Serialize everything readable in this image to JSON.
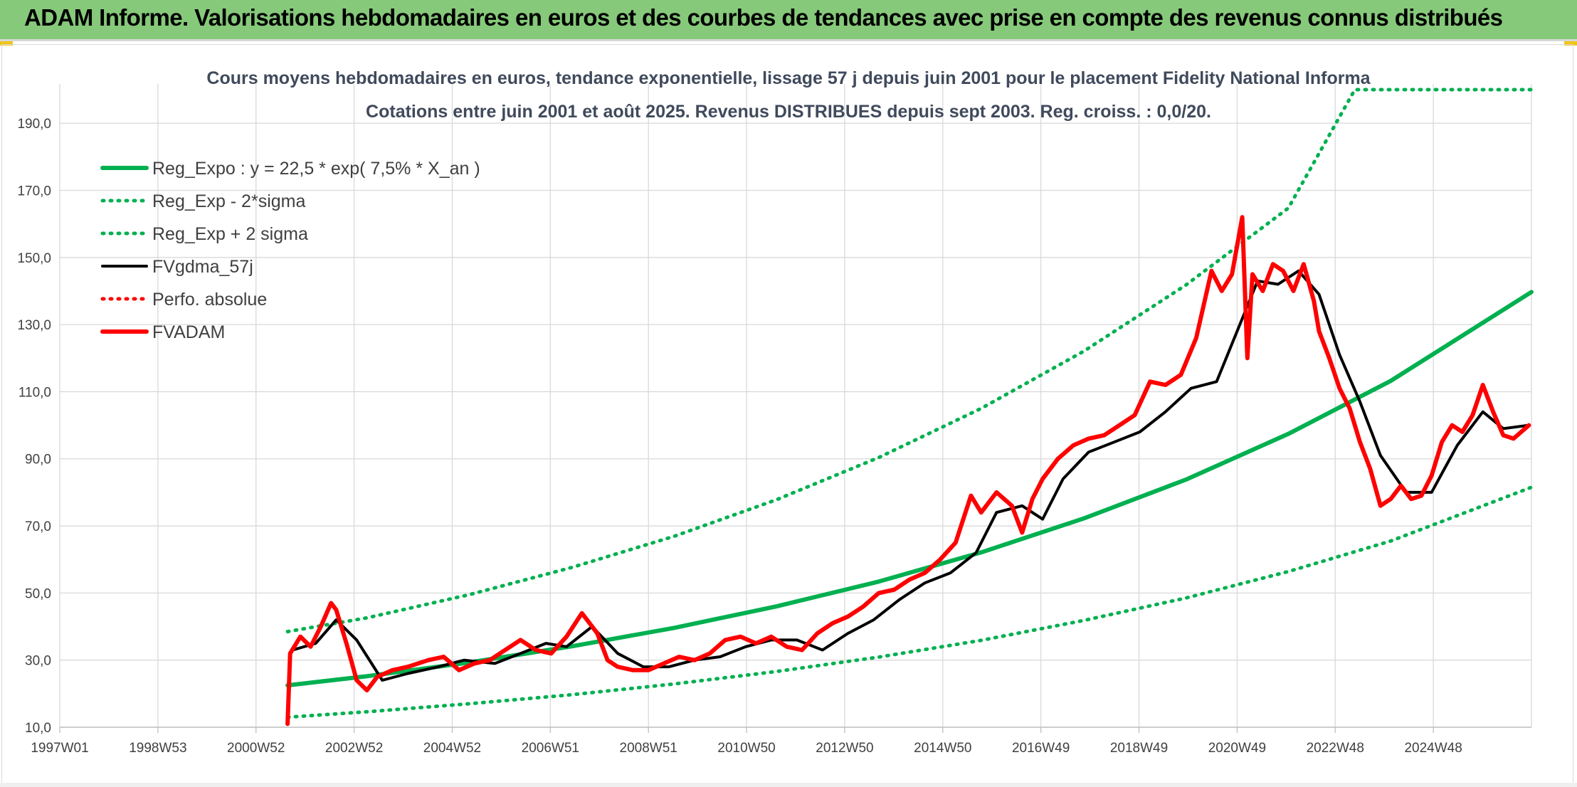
{
  "banner": {
    "title": "ADAM Informe. Valorisations hebdomadaires en euros et des courbes de tendances avec prise en compte des revenus connus distribués"
  },
  "chart_data": {
    "type": "line",
    "title": "Cours moyens hebdomadaires en euros, tendance exponentielle, lissage 57 j depuis juin 2001 pour le placement Fidelity National Informa",
    "subtitle": "Cotations entre juin 2001 et août 2025. Revenus DISTRIBUES depuis sept 2003. Reg. croiss. : 0,0/20.",
    "xlabel": "",
    "ylabel": "",
    "x_ticks": [
      "1997W01",
      "1998W53",
      "2000W52",
      "2002W52",
      "2004W52",
      "2006W51",
      "2008W51",
      "2010W50",
      "2012W50",
      "2014W50",
      "2016W49",
      "2018W49",
      "2020W49",
      "2022W48",
      "2024W48"
    ],
    "x_range": [
      1997.0,
      2025.75
    ],
    "ylim": [
      10,
      200
    ],
    "y_ticks": [
      10,
      30,
      50,
      70,
      90,
      110,
      130,
      150,
      170,
      190
    ],
    "y_tick_labels": [
      "10,0",
      "30,0",
      "50,0",
      "70,0",
      "90,0",
      "110,0",
      "130,0",
      "150,0",
      "170,0",
      "190,0"
    ],
    "grid": true,
    "legend_position": "top-left",
    "series": [
      {
        "name": "Reg_Expo : y = 22,5 * exp( 7,5% *  X_an )",
        "color": "#00b050",
        "style": "solid-thick",
        "formula": {
          "a": 22.5,
          "rate": 0.075,
          "x0": 2001.45
        },
        "x": [
          2001.45,
          2003.0,
          2005.0,
          2007.0,
          2009.0,
          2011.0,
          2013.0,
          2015.0,
          2017.0,
          2019.0,
          2021.0,
          2023.0,
          2025.75
        ],
        "values": [
          22.5,
          25.2,
          29.3,
          34.1,
          39.6,
          46.0,
          53.4,
          62.1,
          72.2,
          83.8,
          97.4,
          113.2,
          139.7
        ]
      },
      {
        "name": "Reg_Exp - 2*sigma",
        "color": "#00b050",
        "style": "dotted",
        "x": [
          2001.45,
          2003.0,
          2005.0,
          2007.0,
          2009.0,
          2011.0,
          2013.0,
          2015.0,
          2017.0,
          2019.0,
          2021.0,
          2023.0,
          2025.75
        ],
        "values": [
          13.0,
          14.6,
          17.0,
          19.7,
          22.9,
          26.6,
          30.9,
          35.9,
          41.8,
          48.5,
          56.4,
          65.5,
          81.5
        ]
      },
      {
        "name": "Reg_Exp + 2 sigma",
        "color": "#00b050",
        "style": "dotted",
        "x": [
          2001.45,
          2003.0,
          2005.0,
          2007.0,
          2009.0,
          2011.0,
          2013.0,
          2015.0,
          2017.0,
          2019.0,
          2021.0,
          2022.3,
          2025.75
        ],
        "values": [
          38.5,
          42.6,
          49.5,
          57.6,
          66.9,
          77.8,
          90.4,
          105.0,
          122.0,
          141.8,
          164.7,
          200.0,
          200.0
        ]
      },
      {
        "name": "FVgdma_57j",
        "color": "#000000",
        "style": "solid",
        "x": [
          2001.55,
          2002.0,
          2002.4,
          2002.8,
          2003.3,
          2003.8,
          2004.4,
          2004.9,
          2005.5,
          2006.0,
          2006.5,
          2006.9,
          2007.4,
          2007.9,
          2008.4,
          2008.9,
          2009.4,
          2009.9,
          2010.4,
          2010.9,
          2011.4,
          2011.9,
          2012.4,
          2012.9,
          2013.4,
          2013.9,
          2014.4,
          2014.9,
          2015.3,
          2015.8,
          2016.2,
          2016.6,
          2017.1,
          2017.6,
          2018.1,
          2018.6,
          2019.1,
          2019.6,
          2020.0,
          2020.4,
          2020.8,
          2021.2,
          2021.6,
          2022.0,
          2022.4,
          2022.8,
          2023.3,
          2023.8,
          2024.3,
          2024.8,
          2025.2,
          2025.7
        ],
        "values": [
          33,
          35,
          42,
          36,
          24,
          26,
          28,
          30,
          29,
          32,
          35,
          34,
          40,
          32,
          28,
          28,
          30,
          31,
          34,
          36,
          36,
          33,
          38,
          42,
          48,
          53,
          56,
          62,
          74,
          76,
          72,
          84,
          92,
          95,
          98,
          104,
          111,
          113,
          128,
          143,
          142,
          146,
          139,
          121,
          107,
          91,
          80,
          80,
          94,
          104,
          99,
          100
        ]
      },
      {
        "name": "Perfo. absolue",
        "color": "#ff0000",
        "style": "dotted",
        "x": [],
        "values": []
      },
      {
        "name": "FVADAM",
        "color": "#ff0000",
        "style": "solid-thick",
        "x": [
          2001.45,
          2001.5,
          2001.7,
          2001.9,
          2002.1,
          2002.3,
          2002.4,
          2002.6,
          2002.8,
          2003.0,
          2003.2,
          2003.5,
          2003.8,
          2004.2,
          2004.5,
          2004.8,
          2005.1,
          2005.4,
          2005.7,
          2006.0,
          2006.3,
          2006.6,
          2006.9,
          2007.2,
          2007.5,
          2007.7,
          2007.9,
          2008.2,
          2008.5,
          2008.8,
          2009.1,
          2009.4,
          2009.7,
          2010.0,
          2010.3,
          2010.6,
          2010.9,
          2011.2,
          2011.5,
          2011.8,
          2012.1,
          2012.4,
          2012.7,
          2013.0,
          2013.3,
          2013.6,
          2013.9,
          2014.2,
          2014.5,
          2014.8,
          2015.0,
          2015.3,
          2015.6,
          2015.8,
          2016.0,
          2016.2,
          2016.5,
          2016.8,
          2017.1,
          2017.4,
          2017.7,
          2018.0,
          2018.3,
          2018.6,
          2018.9,
          2019.2,
          2019.5,
          2019.7,
          2019.9,
          2020.1,
          2020.2,
          2020.3,
          2020.5,
          2020.7,
          2020.9,
          2021.1,
          2021.3,
          2021.5,
          2021.6,
          2021.8,
          2022.0,
          2022.2,
          2022.4,
          2022.6,
          2022.8,
          2023.0,
          2023.2,
          2023.4,
          2023.6,
          2023.8,
          2024.0,
          2024.2,
          2024.4,
          2024.6,
          2024.8,
          2025.0,
          2025.2,
          2025.4,
          2025.7
        ],
        "values": [
          11,
          32,
          37,
          34,
          40,
          47,
          45,
          35,
          24,
          21,
          25,
          27,
          28,
          30,
          31,
          27,
          29,
          30,
          33,
          36,
          33,
          32,
          37,
          44,
          38,
          30,
          28,
          27,
          27,
          29,
          31,
          30,
          32,
          36,
          37,
          35,
          37,
          34,
          33,
          38,
          41,
          43,
          46,
          50,
          51,
          54,
          56,
          60,
          65,
          79,
          74,
          80,
          76,
          68,
          78,
          84,
          90,
          94,
          96,
          97,
          100,
          103,
          113,
          112,
          115,
          126,
          146,
          140,
          145,
          162,
          120,
          145,
          140,
          148,
          146,
          140,
          148,
          137,
          128,
          120,
          111,
          105,
          95,
          87,
          76,
          78,
          82,
          78,
          79,
          85,
          95,
          100,
          98,
          103,
          112,
          104,
          97,
          96,
          100
        ]
      }
    ]
  }
}
